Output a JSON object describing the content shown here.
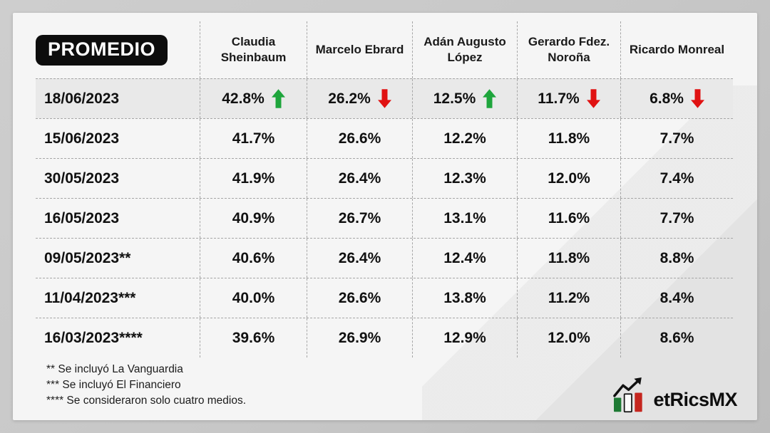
{
  "table": {
    "corner_label": "PROMEDIO",
    "columns": [
      "Claudia Sheinbaum",
      "Marcelo Ebrard",
      "Adán Augusto López",
      "Gerardo Fdez. Noroña",
      "Ricardo Monreal"
    ],
    "rows": [
      {
        "date": "18/06/2023",
        "values": [
          "42.8%",
          "26.2%",
          "12.5%",
          "11.7%",
          "6.8%"
        ],
        "trends": [
          "up",
          "down",
          "up",
          "down",
          "down"
        ]
      },
      {
        "date": "15/06/2023",
        "values": [
          "41.7%",
          "26.6%",
          "12.2%",
          "11.8%",
          "7.7%"
        ]
      },
      {
        "date": "30/05/2023",
        "values": [
          "41.9%",
          "26.4%",
          "12.3%",
          "12.0%",
          "7.4%"
        ]
      },
      {
        "date": "16/05/2023",
        "values": [
          "40.9%",
          "26.7%",
          "13.1%",
          "11.6%",
          "7.7%"
        ]
      },
      {
        "date": "09/05/2023**",
        "values": [
          "40.6%",
          "26.4%",
          "12.4%",
          "11.8%",
          "8.8%"
        ]
      },
      {
        "date": "11/04/2023***",
        "values": [
          "40.0%",
          "26.6%",
          "13.8%",
          "11.2%",
          "8.4%"
        ]
      },
      {
        "date": "16/03/2023****",
        "values": [
          "39.6%",
          "26.9%",
          "12.9%",
          "12.0%",
          "8.6%"
        ]
      }
    ]
  },
  "chart_data": {
    "type": "table",
    "title": "PROMEDIO",
    "categories": [
      "18/06/2023",
      "15/06/2023",
      "30/05/2023",
      "16/05/2023",
      "09/05/2023**",
      "11/04/2023***",
      "16/03/2023****"
    ],
    "series": [
      {
        "name": "Claudia Sheinbaum",
        "values": [
          42.8,
          41.7,
          41.9,
          40.9,
          40.6,
          40.0,
          39.6
        ]
      },
      {
        "name": "Marcelo Ebrard",
        "values": [
          26.2,
          26.6,
          26.4,
          26.7,
          26.4,
          26.6,
          26.9
        ]
      },
      {
        "name": "Adán Augusto López",
        "values": [
          12.5,
          12.2,
          12.3,
          13.1,
          12.4,
          13.8,
          12.9
        ]
      },
      {
        "name": "Gerardo Fdez. Noroña",
        "values": [
          11.7,
          11.8,
          12.0,
          11.6,
          11.8,
          11.2,
          12.0
        ]
      },
      {
        "name": "Ricardo Monreal",
        "values": [
          6.8,
          7.7,
          7.4,
          7.7,
          8.8,
          8.4,
          8.6
        ]
      }
    ],
    "latest_trends": {
      "Claudia Sheinbaum": "up",
      "Marcelo Ebrard": "down",
      "Adán Augusto López": "up",
      "Gerardo Fdez. Noroña": "down",
      "Ricardo Monreal": "down"
    },
    "unit": "%"
  },
  "footnotes": [
    "** Se incluyó La Vanguardia",
    "*** Se incluyó El Financiero",
    "**** Se consideraron solo cuatro medios."
  ],
  "logo": {
    "name": "MetricsMX",
    "wordmark": "etRicsMX"
  },
  "colors": {
    "trend_up": "#1ea53c",
    "trend_down": "#e01212",
    "highlight_row": "#e9e9e9",
    "badge_bg": "#0d0d0d",
    "logo_green": "#1e7a34",
    "logo_red": "#c5261f"
  }
}
